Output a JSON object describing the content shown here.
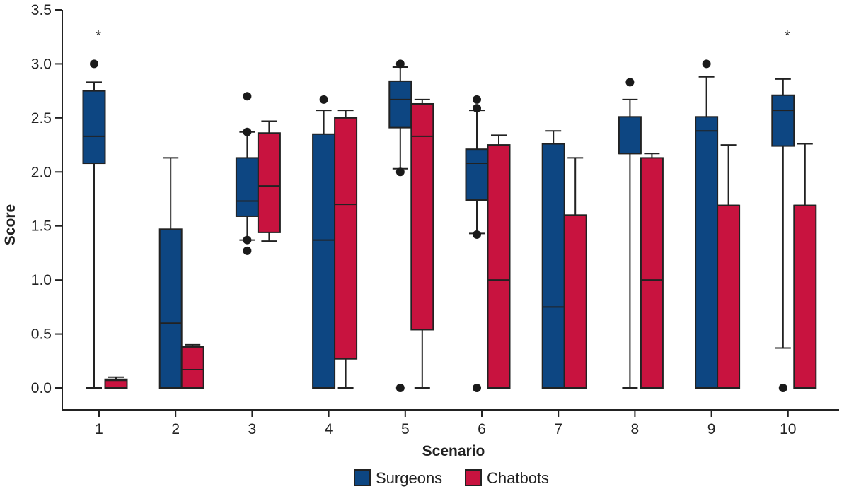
{
  "chart_data": {
    "type": "box",
    "xlabel": "Scenario",
    "ylabel": "Score",
    "ylim": [
      0,
      3.5
    ],
    "yticks": [
      "0.0",
      "0.5",
      "1.0",
      "1.5",
      "2.0",
      "2.5",
      "3.0",
      "3.5"
    ],
    "categories": [
      "1",
      "2",
      "3",
      "4",
      "5",
      "6",
      "7",
      "8",
      "9",
      "10"
    ],
    "legend_position": "bottom",
    "series": [
      {
        "name": "Surgeons",
        "color": "#0d4682",
        "boxes": [
          {
            "whisker_low": 0.0,
            "q1": 2.08,
            "median": 2.33,
            "q3": 2.75,
            "whisker_high": 2.83,
            "outliers": [
              3.0
            ]
          },
          {
            "whisker_low": 0.0,
            "q1": 0.0,
            "median": 0.6,
            "q3": 1.47,
            "whisker_high": 2.13,
            "outliers": []
          },
          {
            "whisker_low": 1.37,
            "q1": 1.59,
            "median": 1.73,
            "q3": 2.13,
            "whisker_high": 2.37,
            "outliers": [
              2.7,
              2.37,
              1.37,
              1.27
            ]
          },
          {
            "whisker_low": 0.0,
            "q1": 0.0,
            "median": 1.37,
            "q3": 2.35,
            "whisker_high": 2.57,
            "outliers": [
              2.67
            ]
          },
          {
            "whisker_low": 2.03,
            "q1": 2.41,
            "median": 2.67,
            "q3": 2.84,
            "whisker_high": 2.97,
            "outliers": [
              3.0,
              2.0,
              0.0
            ]
          },
          {
            "whisker_low": 1.43,
            "q1": 1.74,
            "median": 2.08,
            "q3": 2.21,
            "whisker_high": 2.57,
            "outliers": [
              2.67,
              2.59,
              1.42,
              0.0
            ]
          },
          {
            "whisker_low": 0.0,
            "q1": 0.0,
            "median": 0.75,
            "q3": 2.26,
            "whisker_high": 2.38,
            "outliers": []
          },
          {
            "whisker_low": 0.0,
            "q1": 2.17,
            "median": 2.17,
            "q3": 2.51,
            "whisker_high": 2.67,
            "outliers": [
              2.83
            ]
          },
          {
            "whisker_low": 0.0,
            "q1": 0.0,
            "median": 2.38,
            "q3": 2.51,
            "whisker_high": 2.88,
            "outliers": [
              3.0
            ]
          },
          {
            "whisker_low": 0.37,
            "q1": 2.24,
            "median": 2.57,
            "q3": 2.71,
            "whisker_high": 2.86,
            "outliers": [
              0.0
            ]
          }
        ]
      },
      {
        "name": "Chatbots",
        "color": "#c8133f",
        "boxes": [
          {
            "whisker_low": 0.0,
            "q1": 0.0,
            "median": 0.07,
            "q3": 0.08,
            "whisker_high": 0.1,
            "outliers": []
          },
          {
            "whisker_low": 0.0,
            "q1": 0.0,
            "median": 0.17,
            "q3": 0.38,
            "whisker_high": 0.4,
            "outliers": []
          },
          {
            "whisker_low": 1.36,
            "q1": 1.44,
            "median": 1.87,
            "q3": 2.36,
            "whisker_high": 2.47,
            "outliers": []
          },
          {
            "whisker_low": 0.0,
            "q1": 0.27,
            "median": 1.7,
            "q3": 2.5,
            "whisker_high": 2.57,
            "outliers": []
          },
          {
            "whisker_low": 0.0,
            "q1": 0.54,
            "median": 2.33,
            "q3": 2.63,
            "whisker_high": 2.67,
            "outliers": []
          },
          {
            "whisker_low": 0.0,
            "q1": 0.0,
            "median": 1.0,
            "q3": 2.25,
            "whisker_high": 2.34,
            "outliers": []
          },
          {
            "whisker_low": 0.0,
            "q1": 0.0,
            "median": 1.6,
            "q3": 1.6,
            "whisker_high": 2.13,
            "outliers": []
          },
          {
            "whisker_low": 0.0,
            "q1": 0.0,
            "median": 1.0,
            "q3": 2.13,
            "whisker_high": 2.17,
            "outliers": []
          },
          {
            "whisker_low": 0.0,
            "q1": 0.0,
            "median": 1.69,
            "q3": 1.69,
            "whisker_high": 2.25,
            "outliers": []
          },
          {
            "whisker_low": 0.0,
            "q1": 0.0,
            "median": 1.69,
            "q3": 1.69,
            "whisker_high": 2.26,
            "outliers": []
          }
        ]
      }
    ],
    "annotations": [
      {
        "text": "*",
        "category": "1",
        "y": 3.22
      },
      {
        "text": "*",
        "category": "10",
        "y": 3.22
      }
    ]
  }
}
